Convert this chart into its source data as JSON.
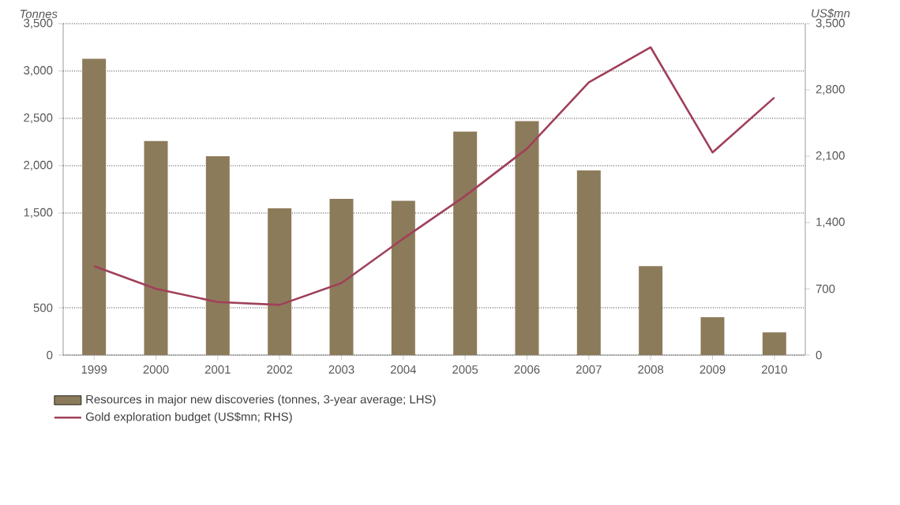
{
  "chart_data": {
    "type": "bar",
    "categories": [
      "1999",
      "2000",
      "2001",
      "2002",
      "2003",
      "2004",
      "2005",
      "2006",
      "2007",
      "2008",
      "2009",
      "2010"
    ],
    "series": [
      {
        "name": "Resources in major new discoveries (tonnes, 3-year average; LHS)",
        "color": "#8c7b5a",
        "values": [
          3130,
          2260,
          2100,
          1550,
          1650,
          1630,
          2360,
          2470,
          1950,
          940,
          400,
          240
        ]
      },
      {
        "name": "Gold exploration budget (US$mn; RHS)",
        "type": "line",
        "axis": "y2",
        "color": "#a0405a",
        "values": [
          940,
          700,
          560,
          530,
          760,
          1230,
          1680,
          2180,
          2880,
          3250,
          2140,
          2720
        ]
      }
    ],
    "ylabel": "Tonnes",
    "y2label": "US$mn",
    "ylim": [
      0,
      3500
    ],
    "yticks": [
      0,
      500,
      {
        "value": 1500,
        "label": "1,500"
      },
      {
        "value": 2000,
        "label": "2,000"
      },
      {
        "value": 2500,
        "label": "2,500"
      },
      {
        "value": 3000,
        "label": "3,000"
      },
      {
        "value": 3500,
        "label": "3,500"
      }
    ],
    "y2lim": [
      0,
      3500
    ],
    "y2ticks": [
      0,
      700,
      {
        "value": 1400,
        "label": "1,400"
      },
      {
        "value": 2100,
        "label": "2,100"
      },
      {
        "value": 2800,
        "label": "2,800"
      },
      {
        "value": 3500,
        "label": "3,500"
      }
    ],
    "grid": "y",
    "legend": "bottom"
  }
}
